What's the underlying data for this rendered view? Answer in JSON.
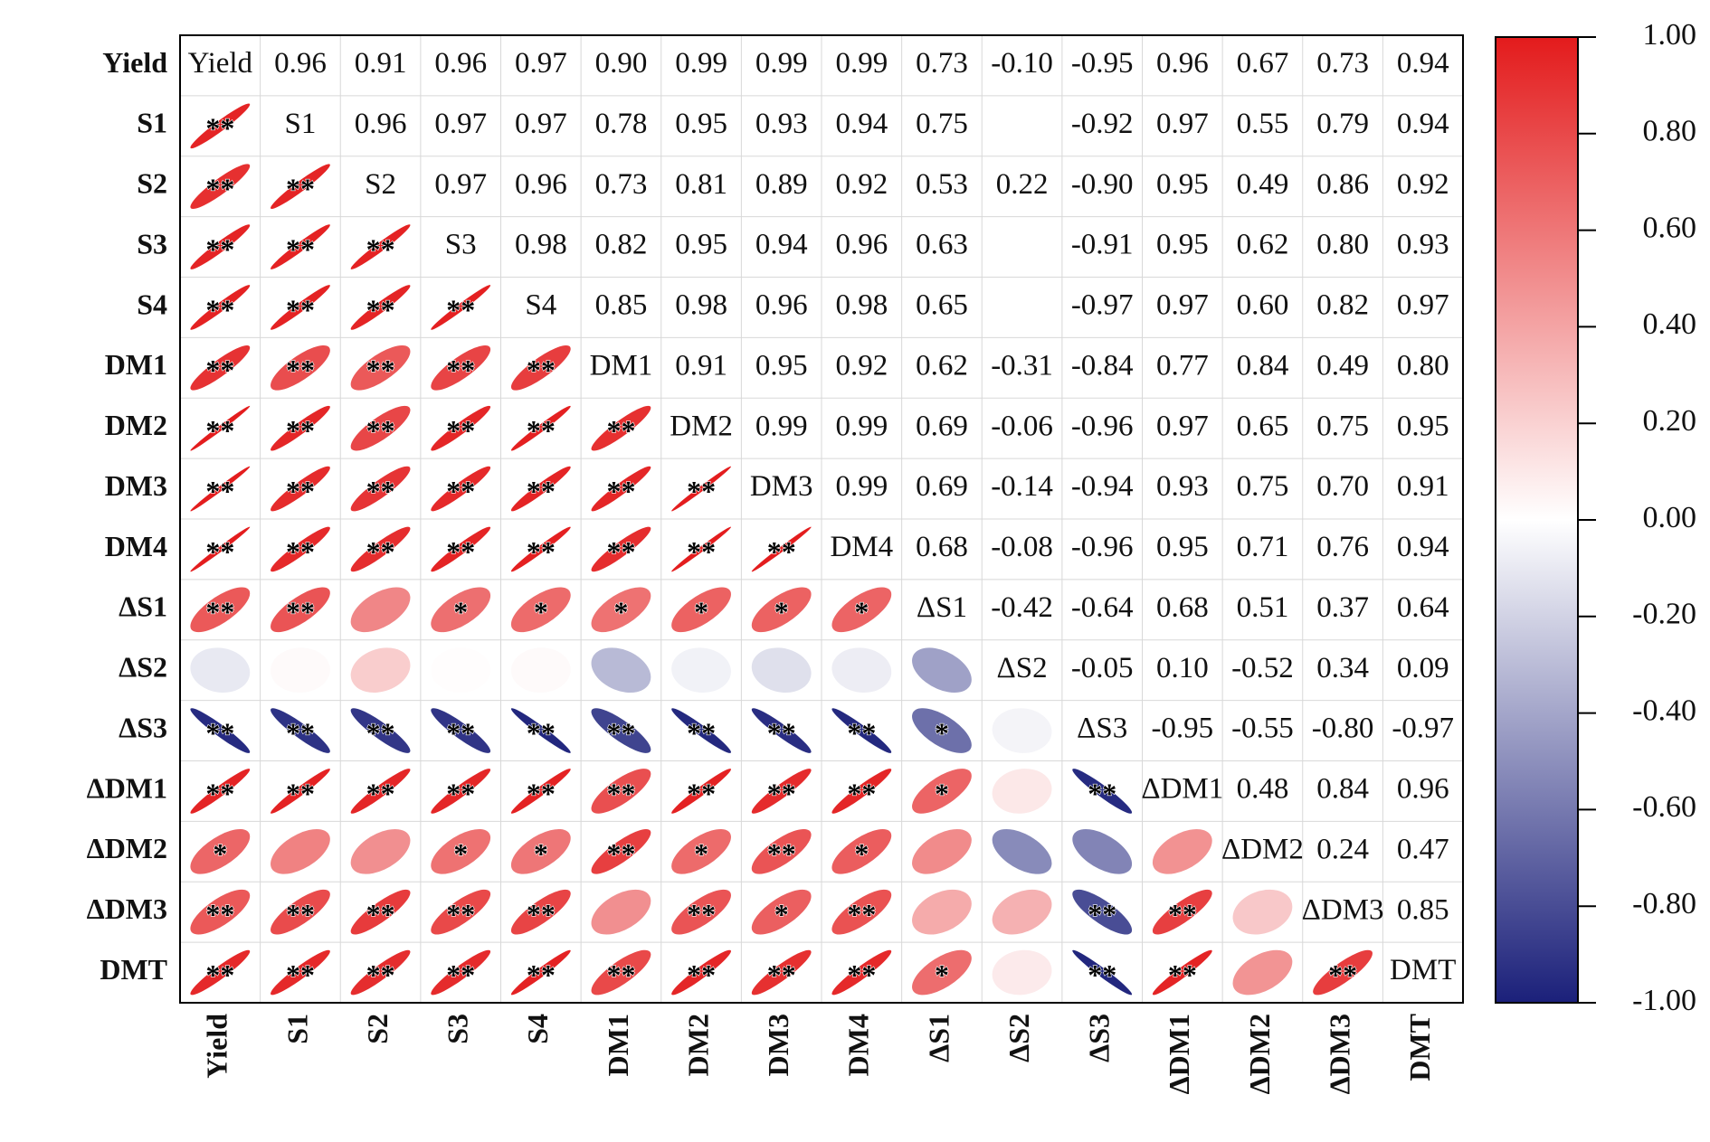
{
  "chart_data": {
    "type": "correlation-ellipse",
    "categories": [
      "Yield",
      "S1",
      "S2",
      "S3",
      "S4",
      "DM1",
      "DM2",
      "DM3",
      "DM4",
      "ΔS1",
      "ΔS2",
      "ΔS3",
      "ΔDM1",
      "ΔDM2",
      "ΔDM3",
      "DMT"
    ],
    "values": [
      [
        null,
        0.96,
        0.91,
        0.96,
        0.97,
        0.9,
        0.99,
        0.99,
        0.99,
        0.73,
        -0.1,
        -0.95,
        0.96,
        0.67,
        0.73,
        0.94
      ],
      [
        null,
        null,
        0.96,
        0.97,
        0.97,
        0.78,
        0.95,
        0.93,
        0.94,
        0.75,
        0.02,
        -0.92,
        0.97,
        0.55,
        0.79,
        0.94
      ],
      [
        null,
        null,
        null,
        0.97,
        0.96,
        0.73,
        0.81,
        0.89,
        0.92,
        0.53,
        0.22,
        -0.9,
        0.95,
        0.49,
        0.86,
        0.92
      ],
      [
        null,
        null,
        null,
        null,
        0.98,
        0.82,
        0.95,
        0.94,
        0.96,
        0.63,
        0.01,
        -0.91,
        0.95,
        0.62,
        0.8,
        0.93
      ],
      [
        null,
        null,
        null,
        null,
        null,
        0.85,
        0.98,
        0.96,
        0.98,
        0.65,
        0.02,
        -0.97,
        0.97,
        0.6,
        0.82,
        0.97
      ],
      [
        null,
        null,
        null,
        null,
        null,
        null,
        0.91,
        0.95,
        0.92,
        0.62,
        -0.31,
        -0.84,
        0.77,
        0.84,
        0.49,
        0.8
      ],
      [
        null,
        null,
        null,
        null,
        null,
        null,
        null,
        0.99,
        0.99,
        0.69,
        -0.06,
        -0.96,
        0.97,
        0.65,
        0.75,
        0.95
      ],
      [
        null,
        null,
        null,
        null,
        null,
        null,
        null,
        null,
        0.99,
        0.69,
        -0.14,
        -0.94,
        0.93,
        0.75,
        0.7,
        0.91
      ],
      [
        null,
        null,
        null,
        null,
        null,
        null,
        null,
        null,
        null,
        0.68,
        -0.08,
        -0.96,
        0.95,
        0.71,
        0.76,
        0.94
      ],
      [
        null,
        null,
        null,
        null,
        null,
        null,
        null,
        null,
        null,
        null,
        -0.42,
        -0.64,
        0.68,
        0.51,
        0.37,
        0.64
      ],
      [
        null,
        null,
        null,
        null,
        null,
        null,
        null,
        null,
        null,
        null,
        null,
        -0.05,
        0.1,
        -0.52,
        0.34,
        0.09
      ],
      [
        null,
        null,
        null,
        null,
        null,
        null,
        null,
        null,
        null,
        null,
        null,
        null,
        -0.95,
        -0.55,
        -0.8,
        -0.97
      ],
      [
        null,
        null,
        null,
        null,
        null,
        null,
        null,
        null,
        null,
        null,
        null,
        null,
        null,
        0.48,
        0.84,
        0.96
      ],
      [
        null,
        null,
        null,
        null,
        null,
        null,
        null,
        null,
        null,
        null,
        null,
        null,
        null,
        null,
        0.24,
        0.47
      ],
      [
        null,
        null,
        null,
        null,
        null,
        null,
        null,
        null,
        null,
        null,
        null,
        null,
        null,
        null,
        null,
        0.85
      ],
      [
        null,
        null,
        null,
        null,
        null,
        null,
        null,
        null,
        null,
        null,
        null,
        null,
        null,
        null,
        null,
        null
      ]
    ],
    "value_labels": [
      [
        null,
        "0.96",
        "0.91",
        "0.96",
        "0.97",
        "0.90",
        "0.99",
        "0.99",
        "0.99",
        "0.73",
        "-0.10",
        "-0.95",
        "0.96",
        "0.67",
        "0.73",
        "0.94"
      ],
      [
        null,
        null,
        "0.96",
        "0.97",
        "0.97",
        "0.78",
        "0.95",
        "0.93",
        "0.94",
        "0.75",
        null,
        "-0.92",
        "0.97",
        "0.55",
        "0.79",
        "0.94"
      ],
      [
        null,
        null,
        null,
        "0.97",
        "0.96",
        "0.73",
        "0.81",
        "0.89",
        "0.92",
        "0.53",
        "0.22",
        "-0.90",
        "0.95",
        "0.49",
        "0.86",
        "0.92"
      ],
      [
        null,
        null,
        null,
        null,
        "0.98",
        "0.82",
        "0.95",
        "0.94",
        "0.96",
        "0.63",
        null,
        "-0.91",
        "0.95",
        "0.62",
        "0.80",
        "0.93"
      ],
      [
        null,
        null,
        null,
        null,
        null,
        "0.85",
        "0.98",
        "0.96",
        "0.98",
        "0.65",
        null,
        "-0.97",
        "0.97",
        "0.60",
        "0.82",
        "0.97"
      ],
      [
        null,
        null,
        null,
        null,
        null,
        null,
        "0.91",
        "0.95",
        "0.92",
        "0.62",
        "-0.31",
        "-0.84",
        "0.77",
        "0.84",
        "0.49",
        "0.80"
      ],
      [
        null,
        null,
        null,
        null,
        null,
        null,
        null,
        "0.99",
        "0.99",
        "0.69",
        "-0.06",
        "-0.96",
        "0.97",
        "0.65",
        "0.75",
        "0.95"
      ],
      [
        null,
        null,
        null,
        null,
        null,
        null,
        null,
        null,
        "0.99",
        "0.69",
        "-0.14",
        "-0.94",
        "0.93",
        "0.75",
        "0.70",
        "0.91"
      ],
      [
        null,
        null,
        null,
        null,
        null,
        null,
        null,
        null,
        null,
        "0.68",
        "-0.08",
        "-0.96",
        "0.95",
        "0.71",
        "0.76",
        "0.94"
      ],
      [
        null,
        null,
        null,
        null,
        null,
        null,
        null,
        null,
        null,
        null,
        "-0.42",
        "-0.64",
        "0.68",
        "0.51",
        "0.37",
        "0.64"
      ],
      [
        null,
        null,
        null,
        null,
        null,
        null,
        null,
        null,
        null,
        null,
        null,
        "-0.05",
        "0.10",
        "-0.52",
        "0.34",
        "0.09"
      ],
      [
        null,
        null,
        null,
        null,
        null,
        null,
        null,
        null,
        null,
        null,
        null,
        null,
        "-0.95",
        "-0.55",
        "-0.80",
        "-0.97"
      ],
      [
        null,
        null,
        null,
        null,
        null,
        null,
        null,
        null,
        null,
        null,
        null,
        null,
        null,
        "0.48",
        "0.84",
        "0.96"
      ],
      [
        null,
        null,
        null,
        null,
        null,
        null,
        null,
        null,
        null,
        null,
        null,
        null,
        null,
        null,
        "0.24",
        "0.47"
      ],
      [
        null,
        null,
        null,
        null,
        null,
        null,
        null,
        null,
        null,
        null,
        null,
        null,
        null,
        null,
        null,
        "0.85"
      ],
      [
        null,
        null,
        null,
        null,
        null,
        null,
        null,
        null,
        null,
        null,
        null,
        null,
        null,
        null,
        null,
        null
      ]
    ],
    "significance": [
      [
        null,
        null,
        null,
        null,
        null,
        null,
        null,
        null,
        null,
        null,
        null,
        null,
        null,
        null,
        null,
        null
      ],
      [
        "**",
        null,
        null,
        null,
        null,
        null,
        null,
        null,
        null,
        null,
        null,
        null,
        null,
        null,
        null,
        null
      ],
      [
        "**",
        "**",
        null,
        null,
        null,
        null,
        null,
        null,
        null,
        null,
        null,
        null,
        null,
        null,
        null,
        null
      ],
      [
        "**",
        "**",
        "**",
        null,
        null,
        null,
        null,
        null,
        null,
        null,
        null,
        null,
        null,
        null,
        null,
        null
      ],
      [
        "**",
        "**",
        "**",
        "**",
        null,
        null,
        null,
        null,
        null,
        null,
        null,
        null,
        null,
        null,
        null,
        null
      ],
      [
        "**",
        "**",
        "**",
        "**",
        "**",
        null,
        null,
        null,
        null,
        null,
        null,
        null,
        null,
        null,
        null,
        null
      ],
      [
        "**",
        "**",
        "**",
        "**",
        "**",
        "**",
        null,
        null,
        null,
        null,
        null,
        null,
        null,
        null,
        null,
        null
      ],
      [
        "**",
        "**",
        "**",
        "**",
        "**",
        "**",
        "**",
        null,
        null,
        null,
        null,
        null,
        null,
        null,
        null,
        null
      ],
      [
        "**",
        "**",
        "**",
        "**",
        "**",
        "**",
        "**",
        "**",
        null,
        null,
        null,
        null,
        null,
        null,
        null,
        null
      ],
      [
        "**",
        "**",
        null,
        "*",
        "*",
        "*",
        "*",
        "*",
        "*",
        null,
        null,
        null,
        null,
        null,
        null,
        null
      ],
      [
        null,
        null,
        null,
        null,
        null,
        null,
        null,
        null,
        null,
        null,
        null,
        null,
        null,
        null,
        null,
        null
      ],
      [
        "**",
        "**",
        "**",
        "**",
        "**",
        "**",
        "**",
        "**",
        "**",
        "*",
        null,
        null,
        null,
        null,
        null,
        null
      ],
      [
        "**",
        "**",
        "**",
        "**",
        "**",
        "**",
        "**",
        "**",
        "**",
        "*",
        null,
        "**",
        null,
        null,
        null,
        null
      ],
      [
        "*",
        null,
        null,
        "*",
        "*",
        "**",
        "*",
        "**",
        "*",
        null,
        null,
        null,
        null,
        null,
        null,
        null
      ],
      [
        "**",
        "**",
        "**",
        "**",
        "**",
        null,
        "**",
        "*",
        "**",
        null,
        null,
        "**",
        "**",
        null,
        null,
        null
      ],
      [
        "**",
        "**",
        "**",
        "**",
        "**",
        "**",
        "**",
        "**",
        "**",
        "*",
        null,
        "**",
        "**",
        null,
        "**",
        null
      ]
    ],
    "clim": [
      -1,
      1
    ],
    "cticks": [
      {
        "value": 1,
        "label": "1.00"
      },
      {
        "value": 0.8,
        "label": "0.80"
      },
      {
        "value": 0.6,
        "label": "0.60"
      },
      {
        "value": 0.4,
        "label": "0.40"
      },
      {
        "value": 0.2,
        "label": "0.20"
      },
      {
        "value": 0,
        "label": "0.00"
      },
      {
        "value": -0.2,
        "label": "-0.20"
      },
      {
        "value": -0.4,
        "label": "-0.40"
      },
      {
        "value": -0.6,
        "label": "-0.60"
      },
      {
        "value": -0.8,
        "label": "-0.80"
      },
      {
        "value": -1,
        "label": "-1.00"
      }
    ],
    "colormap": [
      "#1b207a",
      "#ffffff",
      "#e31b1c"
    ]
  }
}
